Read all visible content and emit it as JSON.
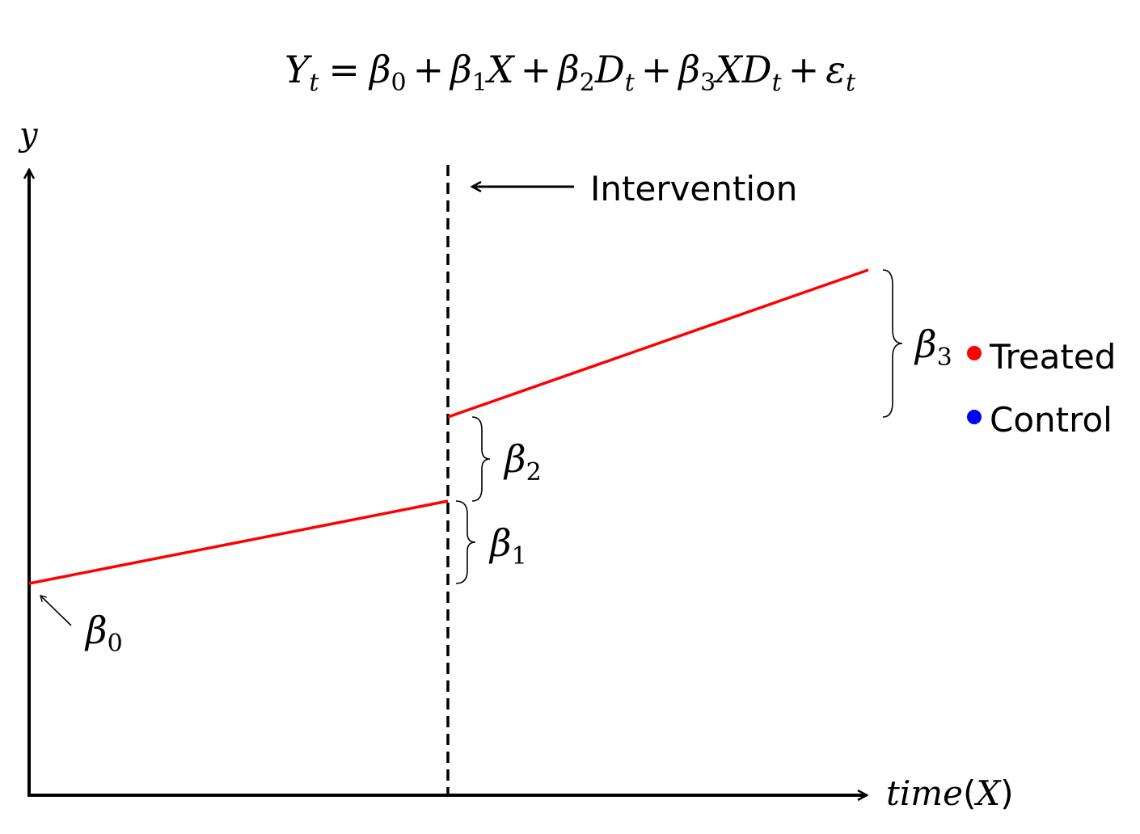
{
  "equation": {
    "Y": "Y",
    "t": "t",
    "eq": "=",
    "b0": "β",
    "b0_sub": "0",
    "p1": "+",
    "b1": "β",
    "b1_sub": "1",
    "X1": "X",
    "p2": "+",
    "b2": "β",
    "b2_sub": "2",
    "D1": "D",
    "D1_sub": "t",
    "p3": "+",
    "b3": "β",
    "b3_sub": "3",
    "X2": "X",
    "D2": "D",
    "D2_sub": "t",
    "p4": "+",
    "eps": "ε",
    "eps_sub": "t"
  },
  "axes": {
    "y_label": "y",
    "x_label_pre": "time",
    "x_label_paren_open": "(",
    "x_label_var": "X",
    "x_label_paren_close": ")"
  },
  "intervention_label": "Intervention",
  "annotations": {
    "beta0": {
      "symbol": "β",
      "sub": "0"
    },
    "beta1": {
      "symbol": "β",
      "sub": "1"
    },
    "beta2": {
      "symbol": "β",
      "sub": "2"
    },
    "beta3": {
      "symbol": "β",
      "sub": "3"
    }
  },
  "legend": [
    {
      "label": "Treated",
      "color": "#ff0000"
    },
    {
      "label": "Control",
      "color": "#0000ff"
    }
  ],
  "colors": {
    "treated_line": "#ff0000",
    "axis": "#000000"
  }
}
